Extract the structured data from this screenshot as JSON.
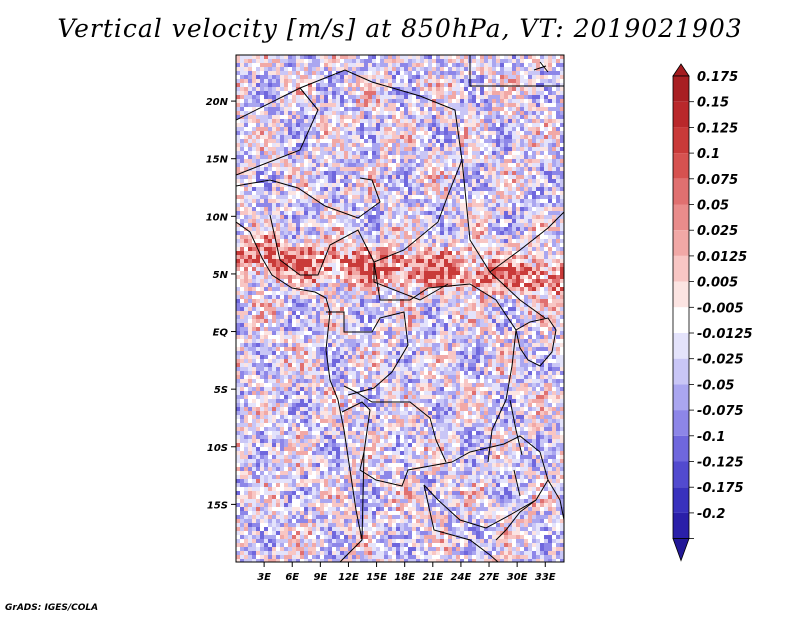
{
  "title": "Vertical velocity [m/s] at 850hPa, VT: 2019021903",
  "footer": "GrADS: IGES/COLA",
  "chart_data": {
    "type": "heatmap",
    "title": "Vertical velocity [m/s] at 850hPa, VT: 2019021903",
    "variable": "Vertical velocity",
    "units": "m/s",
    "level": "850hPa",
    "valid_time": "2019021903",
    "lon_range": [
      0,
      35
    ],
    "lat_range": [
      -20,
      24
    ],
    "x_ticks": [
      {
        "value": 3,
        "label": "3E"
      },
      {
        "value": 6,
        "label": "6E"
      },
      {
        "value": 9,
        "label": "9E"
      },
      {
        "value": 12,
        "label": "12E"
      },
      {
        "value": 15,
        "label": "15E"
      },
      {
        "value": 18,
        "label": "18E"
      },
      {
        "value": 21,
        "label": "21E"
      },
      {
        "value": 24,
        "label": "24E"
      },
      {
        "value": 27,
        "label": "27E"
      },
      {
        "value": 30,
        "label": "30E"
      },
      {
        "value": 33,
        "label": "33E"
      }
    ],
    "y_ticks": [
      {
        "value": 20,
        "label": "20N"
      },
      {
        "value": 15,
        "label": "15N"
      },
      {
        "value": 10,
        "label": "10N"
      },
      {
        "value": 5,
        "label": "5N"
      },
      {
        "value": 0,
        "label": "EQ"
      },
      {
        "value": -5,
        "label": "5S"
      },
      {
        "value": -10,
        "label": "10S"
      },
      {
        "value": -15,
        "label": "15S"
      }
    ],
    "colorbar": {
      "levels": [
        {
          "label": "0.175",
          "color": "#a81f23"
        },
        {
          "label": "0.15",
          "color": "#b9282b"
        },
        {
          "label": "0.125",
          "color": "#c93a39"
        },
        {
          "label": "0.1",
          "color": "#d65250"
        },
        {
          "label": "0.075",
          "color": "#e07070"
        },
        {
          "label": "0.05",
          "color": "#e98c8b"
        },
        {
          "label": "0.025",
          "color": "#f1a8a6"
        },
        {
          "label": "0.0125",
          "color": "#f8c6c4"
        },
        {
          "label": "0.005",
          "color": "#fce4e2"
        },
        {
          "label": "-0.005",
          "color": "#ffffff"
        },
        {
          "label": "-0.0125",
          "color": "#e4e3fb"
        },
        {
          "label": "-0.025",
          "color": "#c9c6f6"
        },
        {
          "label": "-0.05",
          "color": "#aaa6f0"
        },
        {
          "label": "-0.075",
          "color": "#8d86e8"
        },
        {
          "label": "-0.1",
          "color": "#6f67dd"
        },
        {
          "label": "-0.125",
          "color": "#524acf"
        },
        {
          "label": "-0.175",
          "color": "#3931bd"
        },
        {
          "label": "-0.2",
          "color": "#2a1fa9"
        }
      ],
      "max_color": "#a41c20",
      "min_color": "#231897"
    },
    "field_colors": {
      "positive": "#d9534f",
      "negative": "#6a63dc",
      "neutral": "#e9e7fb"
    }
  }
}
